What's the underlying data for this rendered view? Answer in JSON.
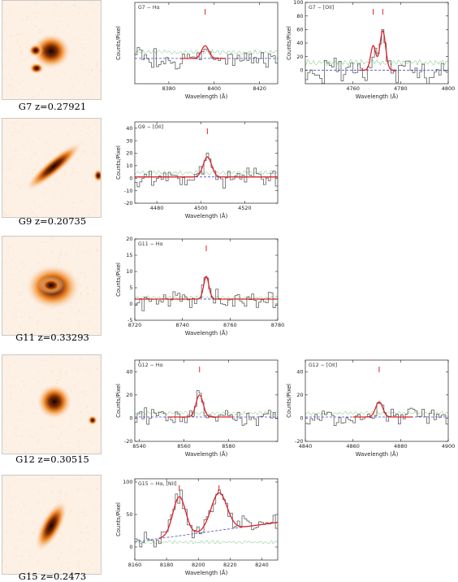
{
  "colors": {
    "data": "#555555",
    "fit": "#e0202a",
    "continuum": "#4a4ad0",
    "error": "#39a845",
    "line_marker": "#e0202a",
    "thumb_core": "#140400",
    "thumb_halo": "#f08a2a",
    "thumb_bg": "#fdf0e4"
  },
  "galaxies": [
    {
      "id": "G7",
      "name": "G7",
      "z": "z=0.27921",
      "caption": "G7  z=0.27921",
      "thumb": {
        "shape": "clumpy",
        "components": 3
      },
      "panels": [
        {
          "label": "G7 − Hα",
          "xlabel": "Wavelength (Å)",
          "ylabel": "Counts/Pixel",
          "xlim": [
            8365,
            8428
          ],
          "ylim": [
            -28,
            62
          ],
          "xticks": [
            8380,
            8400,
            8420
          ],
          "yticks": [],
          "markers": [
            8396
          ],
          "continuum": 0,
          "noise": 11,
          "lines": [
            {
              "center": 8396,
              "amp": 14,
              "sigma": 1.6
            }
          ],
          "fit_range": [
            8385,
            8405
          ]
        },
        {
          "label": "G7 − [OII]",
          "xlabel": "Wavelength (Å)",
          "ylabel": "Counts/Pixel",
          "xlim": [
            4740,
            4800
          ],
          "ylim": [
            -20,
            100
          ],
          "xticks": [
            4760,
            4780,
            4800
          ],
          "yticks": [
            0,
            20,
            40,
            60,
            80,
            100
          ],
          "markers": [
            4768.5,
            4772.5
          ],
          "continuum": 0,
          "noise": 18,
          "lines": [
            {
              "center": 4768.5,
              "amp": 36,
              "sigma": 1.1
            },
            {
              "center": 4772.5,
              "amp": 58,
              "sigma": 1.2
            }
          ],
          "fit_range": [
            4763,
            4778
          ]
        }
      ]
    },
    {
      "id": "G9",
      "name": "G9",
      "z": "z=0.20735",
      "caption": "G9  z=0.20735",
      "thumb": {
        "shape": "edge-on",
        "components": 1
      },
      "panels": [
        {
          "label": "G9 − [OII]",
          "xlabel": "Wavelength (Å)",
          "ylabel": "Counts/Pixel",
          "xlim": [
            4470,
            4535
          ],
          "ylim": [
            -20,
            45
          ],
          "xticks": [
            4480,
            4500,
            4520
          ],
          "yticks": [
            -20,
            -10,
            0,
            10,
            20,
            30,
            40
          ],
          "markers": [
            4503
          ],
          "continuum": 1,
          "noise": 7,
          "lines": [
            {
              "center": 4503,
              "amp": 16,
              "sigma": 1.9
            }
          ],
          "fit_range": [
            4470,
            4535
          ]
        }
      ]
    },
    {
      "id": "G11",
      "name": "G11",
      "z": "z=0.33293",
      "caption": "G11  z=0.33293",
      "thumb": {
        "shape": "clumpy-bright",
        "components": 1
      },
      "panels": [
        {
          "label": "G11 − Hα",
          "xlabel": "Wavelength (Å)",
          "ylabel": "Counts/Pixel",
          "xlim": [
            8720,
            8780
          ],
          "ylim": [
            -5,
            20
          ],
          "xticks": [
            8720,
            8740,
            8760,
            8780
          ],
          "yticks": [
            -5,
            0,
            5,
            10,
            15,
            20
          ],
          "markers": [
            8750
          ],
          "continuum": 1.5,
          "noise": 3,
          "lines": [
            {
              "center": 8750,
              "amp": 7,
              "sigma": 1.1
            }
          ],
          "fit_range": [
            8720,
            8780
          ]
        }
      ]
    },
    {
      "id": "G12",
      "name": "G12",
      "z": "z=0.30515",
      "caption": "G12  z=0.30515",
      "thumb": {
        "shape": "compact",
        "components": 2
      },
      "panels": [
        {
          "label": "G12 − Hα",
          "xlabel": "Wavelength (Å)",
          "ylabel": "Counts/Pixel",
          "xlim": [
            8538,
            8602
          ],
          "ylim": [
            -20,
            50
          ],
          "xticks": [
            8540,
            8560,
            8580
          ],
          "yticks": [
            -20,
            0,
            20,
            40
          ],
          "markers": [
            8567
          ],
          "continuum": 1,
          "noise": 7,
          "lines": [
            {
              "center": 8567,
              "amp": 19,
              "sigma": 1.6
            }
          ],
          "fit_range": [
            8553,
            8582
          ]
        },
        {
          "label": "G12 − [OII]",
          "xlabel": "Wavelength (Å)",
          "ylabel": "Counts/Pixel",
          "xlim": [
            4840,
            4900
          ],
          "ylim": [
            -20,
            50
          ],
          "xticks": [
            4840,
            4860,
            4880,
            4900
          ],
          "yticks": [
            -20,
            0,
            20,
            40
          ],
          "markers": [
            4871
          ],
          "continuum": 1,
          "noise": 7,
          "lines": [
            {
              "center": 4871,
              "amp": 13,
              "sigma": 1.5
            }
          ],
          "fit_range": [
            4860,
            4885
          ]
        }
      ]
    },
    {
      "id": "G15",
      "name": "G15",
      "z": "z=0.2473",
      "caption": "G15  z=0.2473",
      "thumb": {
        "shape": "inclined",
        "components": 1
      },
      "panels": [
        {
          "label": "G15 −  Hα,      [NII]",
          "xlabel": "Wavelength (Å)",
          "ylabel": "Counts/Pixel",
          "xlim": [
            8160,
            8250
          ],
          "ylim": [
            -20,
            105
          ],
          "xticks": [
            8160,
            8180,
            8200,
            8220,
            8240
          ],
          "yticks": [
            0,
            50,
            100
          ],
          "markers": [
            8188,
            8213
          ],
          "continuum_slope": [
            8,
            38
          ],
          "noise": 12,
          "lines": [
            {
              "center": 8188,
              "amp": 60,
              "sigma": 4
            },
            {
              "center": 8213,
              "amp": 58,
              "sigma": 5
            }
          ],
          "fit_range": [
            8175,
            8250
          ]
        }
      ]
    }
  ],
  "chart_data": [
    {
      "type": "line",
      "title": "G7 − Hα",
      "xlabel": "Wavelength (Å)",
      "ylabel": "Counts/Pixel",
      "xlim": [
        8365,
        8428
      ],
      "ylim": [
        -28,
        62
      ],
      "series": [
        {
          "name": "Hα",
          "x": [
            8396
          ],
          "values": [
            14
          ]
        }
      ]
    },
    {
      "type": "line",
      "title": "G7 − [OII]",
      "xlabel": "Wavelength (Å)",
      "ylabel": "Counts/Pixel",
      "xlim": [
        4740,
        4800
      ],
      "ylim": [
        -20,
        100
      ],
      "series": [
        {
          "name": "[OII]",
          "x": [
            4768.5,
            4772.5
          ],
          "values": [
            36,
            58
          ]
        }
      ]
    },
    {
      "type": "line",
      "title": "G9 − [OII]",
      "xlabel": "Wavelength (Å)",
      "ylabel": "Counts/Pixel",
      "xlim": [
        4470,
        4535
      ],
      "ylim": [
        -20,
        45
      ],
      "series": [
        {
          "name": "[OII]",
          "x": [
            4503
          ],
          "values": [
            16
          ]
        }
      ]
    },
    {
      "type": "line",
      "title": "G11 − Hα",
      "xlabel": "Wavelength (Å)",
      "ylabel": "Counts/Pixel",
      "xlim": [
        8720,
        8780
      ],
      "ylim": [
        -5,
        20
      ],
      "series": [
        {
          "name": "Hα",
          "x": [
            8750
          ],
          "values": [
            8.5
          ]
        }
      ]
    },
    {
      "type": "line",
      "title": "G12 − Hα",
      "xlabel": "Wavelength (Å)",
      "ylabel": "Counts/Pixel",
      "xlim": [
        8538,
        8602
      ],
      "ylim": [
        -20,
        50
      ],
      "series": [
        {
          "name": "Hα",
          "x": [
            8567
          ],
          "values": [
            19
          ]
        }
      ]
    },
    {
      "type": "line",
      "title": "G12 − [OII]",
      "xlabel": "Wavelength (Å)",
      "ylabel": "Counts/Pixel",
      "xlim": [
        4840,
        4900
      ],
      "ylim": [
        -20,
        50
      ],
      "series": [
        {
          "name": "[OII]",
          "x": [
            4871
          ],
          "values": [
            13
          ]
        }
      ]
    },
    {
      "type": "line",
      "title": "G15 − Hα, [NII]",
      "xlabel": "Wavelength (Å)",
      "ylabel": "Counts/Pixel",
      "xlim": [
        8160,
        8250
      ],
      "ylim": [
        -20,
        105
      ],
      "series": [
        {
          "name": "Hα",
          "x": [
            8188
          ],
          "values": [
            70
          ]
        },
        {
          "name": "[NII]",
          "x": [
            8213
          ],
          "values": [
            72
          ]
        }
      ]
    }
  ]
}
